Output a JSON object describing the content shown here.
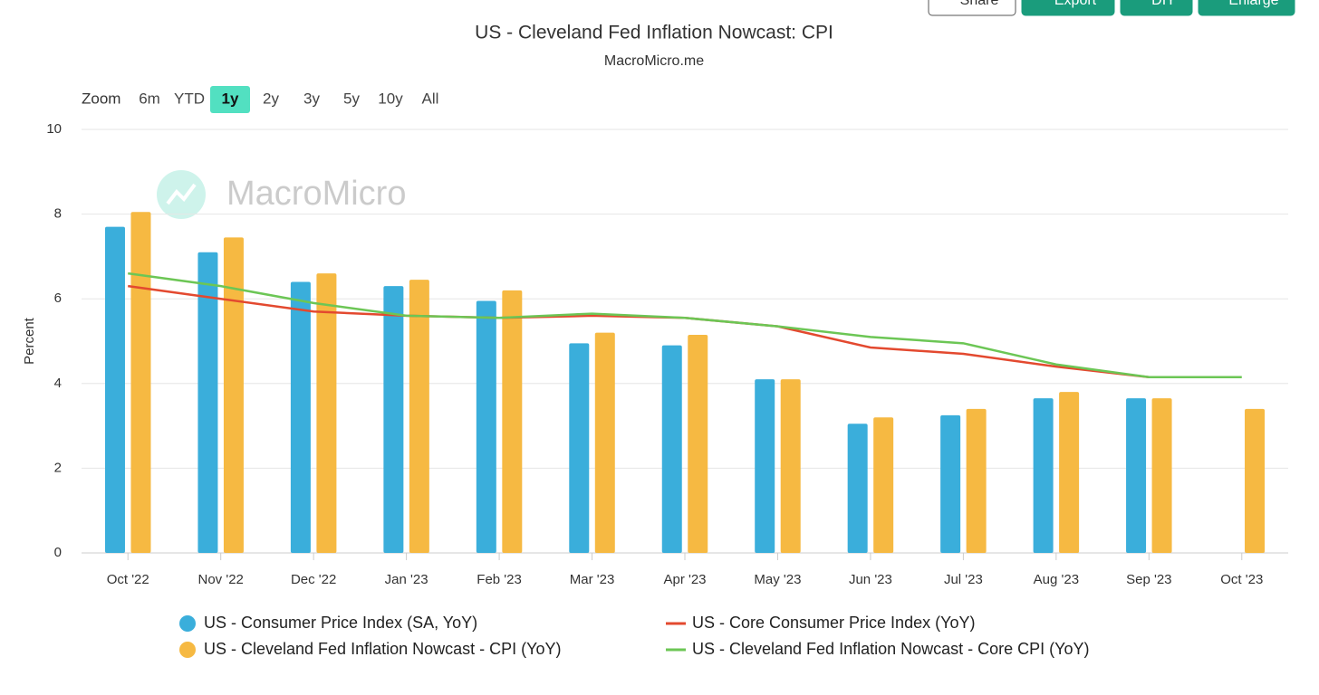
{
  "toolbar": {
    "buttons": [
      "Share",
      "Export",
      "DIY",
      "Enlarge"
    ]
  },
  "zoom": {
    "label": "Zoom",
    "options": [
      "6m",
      "YTD",
      "1y",
      "2y",
      "3y",
      "5y",
      "10y",
      "All"
    ],
    "active": "1y"
  },
  "watermark": "MacroMicro",
  "chart_data": {
    "type": "bar",
    "title": "US - Cleveland Fed Inflation Nowcast: CPI",
    "subtitle": "MacroMicro.me",
    "y_label": "Percent",
    "categories": [
      "Oct '22",
      "Nov '22",
      "Dec '22",
      "Jan '23",
      "Feb '23",
      "Mar '23",
      "Apr '23",
      "May '23",
      "Jun '23",
      "Jul '23",
      "Aug '23",
      "Sep '23",
      "Oct '23"
    ],
    "series": [
      {
        "name": "US - Consumer Price Index (SA, YoY)",
        "type": "bar",
        "color": "#3aaedb",
        "values": [
          7.7,
          7.1,
          6.4,
          6.3,
          5.95,
          4.95,
          4.9,
          4.1,
          3.05,
          3.25,
          3.65,
          3.65,
          null
        ]
      },
      {
        "name": "US - Cleveland Fed Inflation Nowcast - CPI (YoY)",
        "type": "bar",
        "color": "#f6b942",
        "values": [
          8.05,
          7.45,
          6.6,
          6.45,
          6.2,
          5.2,
          5.15,
          4.1,
          3.2,
          3.4,
          3.8,
          3.65,
          3.4
        ]
      },
      {
        "name": "US - Core Consumer Price Index (YoY)",
        "type": "line",
        "color": "#e3492f",
        "values": [
          6.3,
          6.0,
          5.7,
          5.6,
          5.55,
          5.6,
          5.55,
          5.35,
          4.85,
          4.7,
          4.4,
          4.15,
          null
        ]
      },
      {
        "name": "US - Cleveland Fed Inflation Nowcast - Core CPI (YoY)",
        "type": "line",
        "color": "#6cc655",
        "values": [
          6.6,
          6.3,
          5.9,
          5.6,
          5.55,
          5.65,
          5.55,
          5.35,
          5.1,
          4.95,
          4.45,
          4.15,
          4.15
        ]
      }
    ],
    "ylim": [
      0,
      10
    ],
    "yticks": [
      0,
      2,
      4,
      6,
      8,
      10
    ],
    "grid": true
  }
}
